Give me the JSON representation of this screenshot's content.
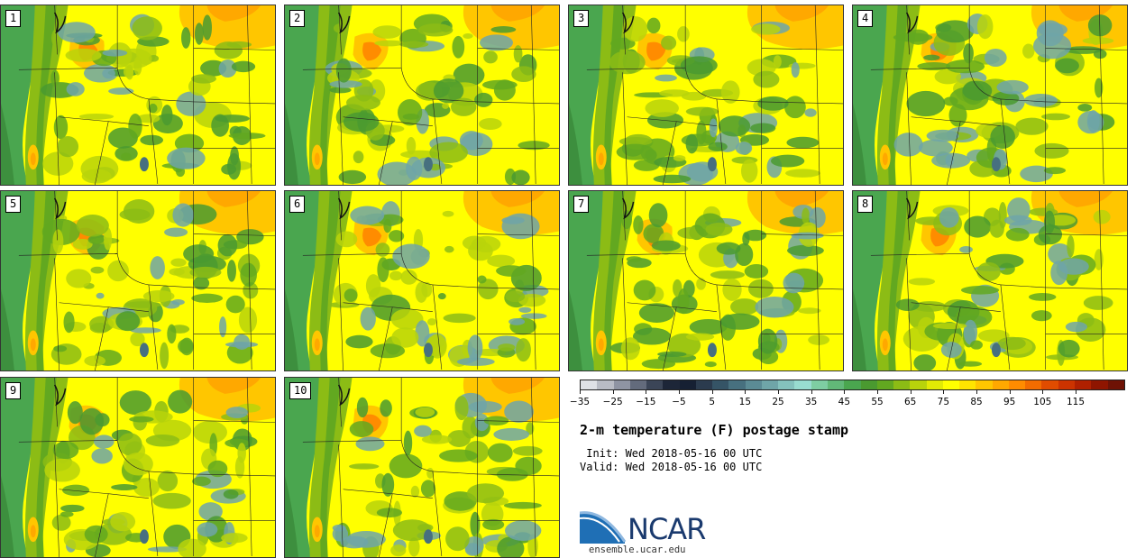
{
  "panels": [
    {
      "label": "1"
    },
    {
      "label": "2"
    },
    {
      "label": "3"
    },
    {
      "label": "4"
    },
    {
      "label": "5"
    },
    {
      "label": "6"
    },
    {
      "label": "7"
    },
    {
      "label": "8"
    },
    {
      "label": "9"
    },
    {
      "label": "10"
    }
  ],
  "colorbar": {
    "colors": [
      "#dfe1e6",
      "#b9bcc5",
      "#8f94a3",
      "#636b7c",
      "#3b4557",
      "#1d2638",
      "#162033",
      "#2b3b4e",
      "#355466",
      "#47707f",
      "#5b8b95",
      "#6fa5a8",
      "#84c2bd",
      "#98dcd0",
      "#7ecda2",
      "#62b878",
      "#4aa64f",
      "#4a9a30",
      "#62a820",
      "#8cbc15",
      "#b8d30b",
      "#e2ea05",
      "#ffff00",
      "#ffe500",
      "#ffc600",
      "#ffa800",
      "#ff8c00",
      "#f26c00",
      "#e04c00",
      "#cc3300",
      "#b02000",
      "#8f1500",
      "#6e1205"
    ],
    "tick_labels": [
      "−35",
      "−25",
      "−15",
      "−5",
      "5",
      "15",
      "25",
      "35",
      "45",
      "55",
      "65",
      "75",
      "85",
      "95",
      "105",
      "115"
    ]
  },
  "title": "2-m temperature (F) postage stamp",
  "init_line": " Init: Wed 2018-05-16 00 UTC",
  "valid_line": "Valid: Wed 2018-05-16 00 UTC",
  "logo_text": "NCAR",
  "url": "ensemble.ucar.edu"
}
